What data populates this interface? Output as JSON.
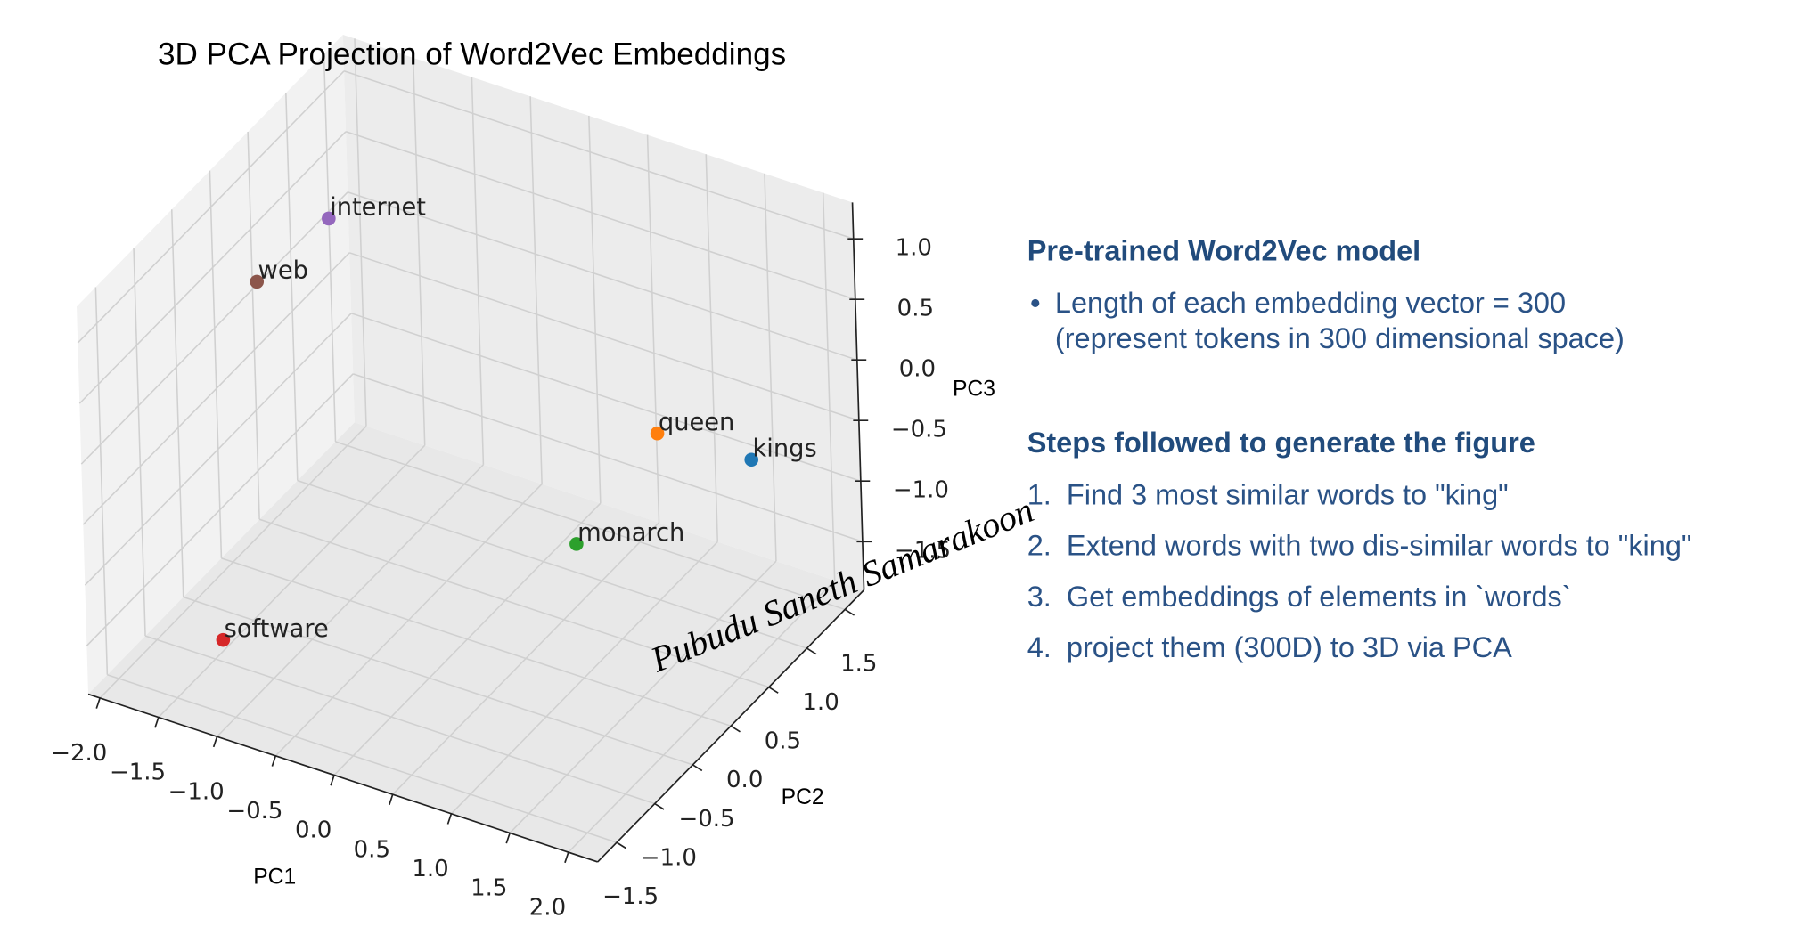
{
  "chart_data": {
    "type": "scatter3d",
    "title": "3D PCA Projection of Word2Vec Embeddings",
    "xlabel": "PC1",
    "ylabel": "PC2",
    "zlabel": "PC3",
    "labels": [
      "kings",
      "queen",
      "monarch",
      "software",
      "internet",
      "web"
    ],
    "colors": [
      "#1f77b4",
      "#ff7f0e",
      "#2ca02c",
      "#d62728",
      "#9467bd",
      "#8c564b"
    ],
    "x": [
      1.82,
      0.88,
      0.56,
      -1.43,
      -1.29,
      -1.52
    ],
    "y": [
      1.0,
      1.2,
      0.6,
      -1.0,
      0.3,
      -0.3
    ],
    "z": [
      -0.48,
      -0.69,
      -1.32,
      -1.72,
      0.97,
      0.76
    ],
    "xlim": [
      -2.1,
      2.25
    ],
    "ylim": [
      -1.75,
      1.75
    ],
    "zlim": [
      -1.9,
      1.3
    ],
    "xticks": [
      {
        "value": -2,
        "label": "−2.0"
      },
      {
        "value": -1.5,
        "label": "−1.5"
      },
      {
        "value": -1,
        "label": "−1.0"
      },
      {
        "value": -0.5,
        "label": "−0.5"
      },
      {
        "value": 0,
        "label": "0.0"
      },
      0.5,
      {
        "value": 1,
        "label": "1.0"
      },
      1.5,
      {
        "value": 2,
        "label": "2.0"
      }
    ],
    "yticks": [
      {
        "value": -1.5,
        "label": "−1.5"
      },
      {
        "value": -1,
        "label": "−1.0"
      },
      {
        "value": -0.5,
        "label": "−0.5"
      },
      {
        "value": 0,
        "label": "0.0"
      },
      0.5,
      {
        "value": 1,
        "label": "1.0"
      },
      1.5
    ],
    "zticks": [
      {
        "value": -1.5,
        "label": "−1.5"
      },
      {
        "value": -1,
        "label": "−1.0"
      },
      {
        "value": -0.5,
        "label": "−0.5"
      },
      {
        "value": 0,
        "label": "0.0"
      },
      0.5,
      {
        "value": 1,
        "label": "1.0"
      }
    ],
    "grid": true
  },
  "signature": "Pubudu Saneth Samarakoon",
  "notes": {
    "sections": [
      {
        "heading": "Pre-trained Word2Vec model",
        "bullets": [
          {
            "lines": [
              "Length of each embedding vector = 300",
              "(represent tokens in 300 dimensional space)"
            ]
          }
        ]
      },
      {
        "heading": "Steps followed to generate the figure",
        "items": [
          {
            "number": "1.",
            "text": "Find 3 most similar words to \"king\""
          },
          {
            "number": "2.",
            "text": "Extend words with two dis-similar words to \"king\""
          },
          {
            "number": "3.",
            "text": "Get embeddings of elements in `words`"
          },
          {
            "number": "4.",
            "text": "project them (300D) to 3D via PCA"
          }
        ]
      }
    ]
  }
}
